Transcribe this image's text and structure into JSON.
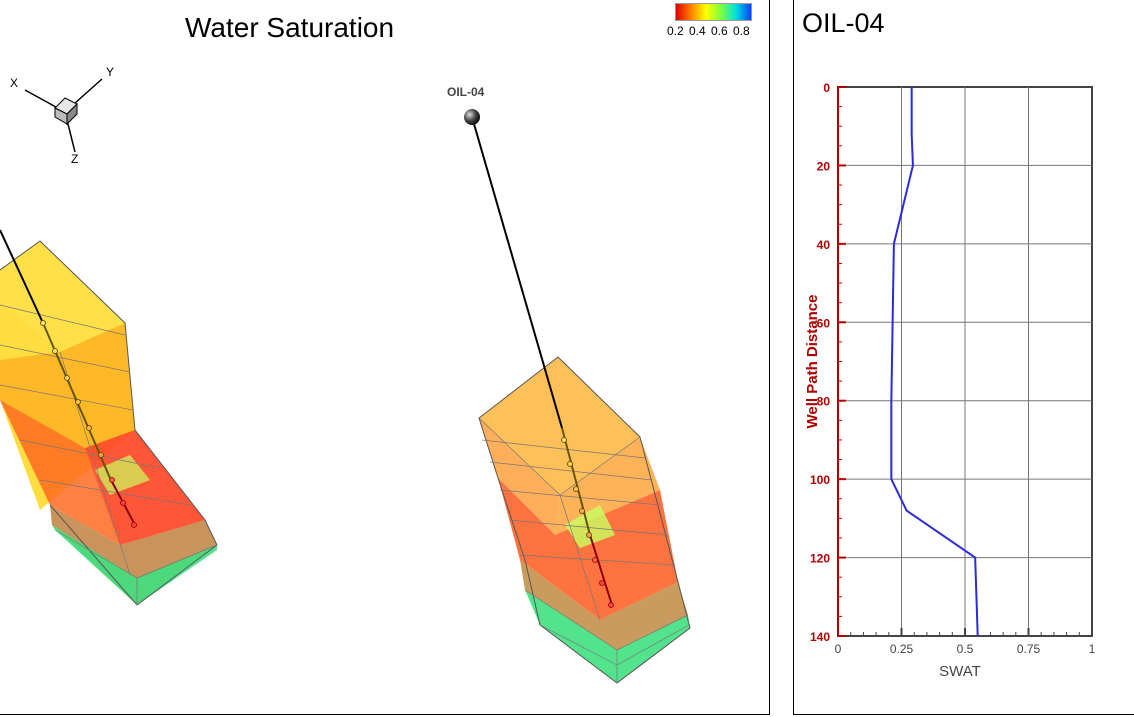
{
  "view3d": {
    "title": "Water Saturation",
    "legend": {
      "labels": [
        "0.2",
        "0.4",
        "0.6",
        "0.8"
      ],
      "colors": [
        "#e00000",
        "#ff8000",
        "#ffff00",
        "#80ff40",
        "#00e0e0",
        "#0040ff"
      ]
    },
    "axes": {
      "x": "X",
      "y": "Y",
      "z": "Z"
    },
    "well_label": "OIL-04"
  },
  "log_plot": {
    "title": "OIL-04",
    "chart_data": {
      "type": "line",
      "title": "OIL-04",
      "xlabel": "SWAT",
      "ylabel": "Well Path Distance",
      "xlim": [
        0,
        1
      ],
      "ylim": [
        140,
        0
      ],
      "x_ticks": [
        "0",
        "0.25",
        "0.5",
        "0.75",
        "1"
      ],
      "y_ticks": [
        "0",
        "20",
        "40",
        "60",
        "80",
        "100",
        "120",
        "140"
      ],
      "series": [
        {
          "name": "SWAT",
          "color": "#2b2bdc",
          "points": [
            [
              0.29,
              0
            ],
            [
              0.29,
              12
            ],
            [
              0.295,
              20
            ],
            [
              0.22,
              40
            ],
            [
              0.215,
              60
            ],
            [
              0.21,
              80
            ],
            [
              0.21,
              100
            ],
            [
              0.27,
              108
            ],
            [
              0.54,
              120
            ],
            [
              0.55,
              140
            ]
          ]
        }
      ],
      "grid": true
    }
  }
}
